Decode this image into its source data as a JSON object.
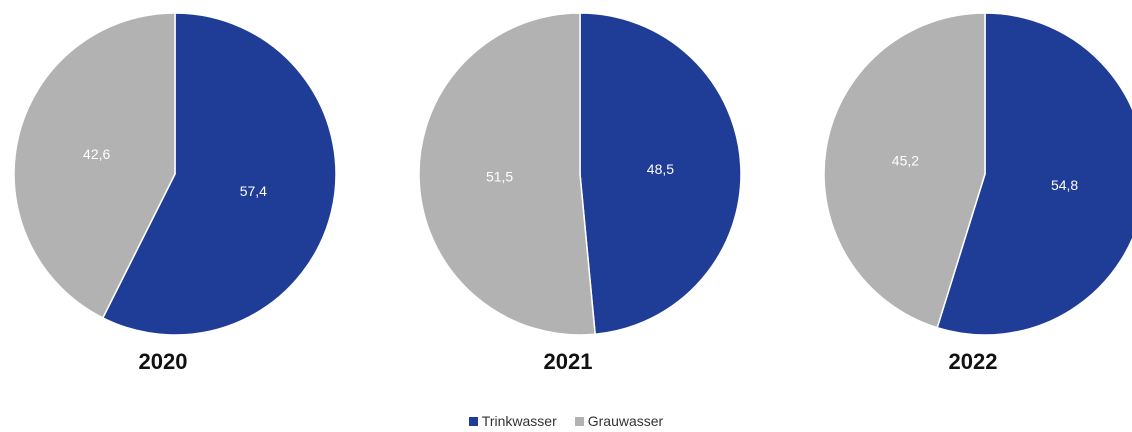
{
  "chart_data": {
    "type": "pie",
    "legend_position": "bottom",
    "series_colors": {
      "Trinkwasser": "#1f3d96",
      "Grauwasser": "#b1b2b1"
    },
    "legend": [
      {
        "name": "Trinkwasser",
        "color": "#1f3d96"
      },
      {
        "name": "Grauwasser",
        "color": "#b1b2b1"
      }
    ],
    "charts": [
      {
        "title": "2020",
        "slices": [
          {
            "name": "Trinkwasser",
            "value": 57.4,
            "label": "57,4"
          },
          {
            "name": "Grauwasser",
            "value": 42.6,
            "label": "42,6"
          }
        ]
      },
      {
        "title": "2021",
        "slices": [
          {
            "name": "Trinkwasser",
            "value": 48.5,
            "label": "48,5"
          },
          {
            "name": "Grauwasser",
            "value": 51.5,
            "label": "51,5"
          }
        ]
      },
      {
        "title": "2022",
        "slices": [
          {
            "name": "Trinkwasser",
            "value": 54.8,
            "label": "54,8"
          },
          {
            "name": "Grauwasser",
            "value": 45.2,
            "label": "45,2"
          }
        ]
      }
    ]
  }
}
